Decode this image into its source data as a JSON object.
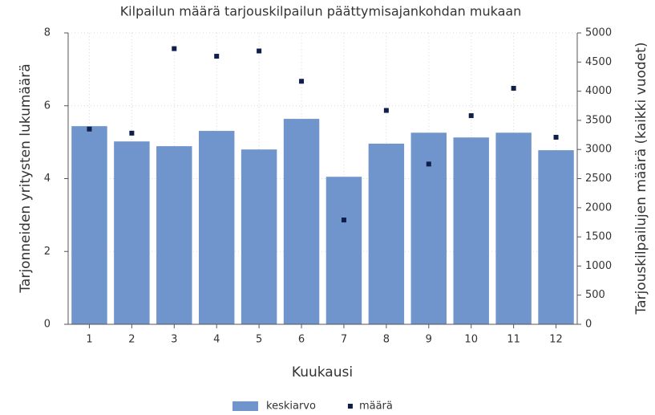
{
  "chart_data": {
    "type": "bar",
    "title": "Kilpailun määrä tarjouskilpailun päättymisajankohdan mukaan",
    "x_label": "Kuukausi",
    "y_label": "Tarjonneiden yritysten lukumäärä",
    "y2_label": "Tarjouskilpailujen määrä (kaikki vuodet)",
    "categories": [
      "1",
      "2",
      "3",
      "4",
      "5",
      "6",
      "7",
      "8",
      "9",
      "10",
      "11",
      "12"
    ],
    "series": [
      {
        "name": "keskiarvo",
        "color": "#7094cc",
        "values": [
          5.44,
          5.02,
          4.89,
          5.31,
          4.8,
          5.64,
          4.05,
          4.96,
          5.26,
          5.13,
          5.26,
          4.78
        ]
      },
      {
        "name": "määrä",
        "type": "scatter",
        "axis": "y2",
        "color": "#0f1f4a",
        "values": [
          3350,
          3280,
          4730,
          4600,
          4690,
          4170,
          1790,
          3670,
          2750,
          3580,
          4050,
          3210
        ]
      }
    ],
    "ylim": [
      0,
      8
    ],
    "yticks": [
      0,
      2,
      4,
      6,
      8
    ],
    "y2lim": [
      0,
      5000
    ],
    "y2ticks": [
      0,
      500,
      1000,
      1500,
      2000,
      2500,
      3000,
      3500,
      4000,
      4500,
      5000
    ],
    "grid": true,
    "legend": "bottom"
  }
}
